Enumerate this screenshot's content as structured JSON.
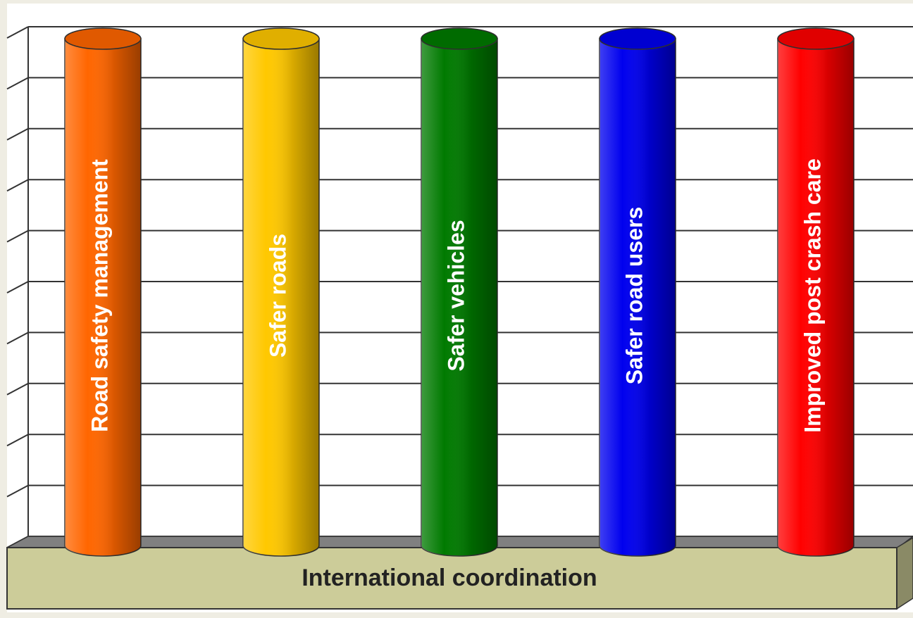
{
  "pillars": [
    {
      "label": "Road safety management",
      "color": "#ff6600"
    },
    {
      "label": "Safer roads",
      "color": "#ffc800"
    },
    {
      "label": "Safer vehicles",
      "color": "#007a00"
    },
    {
      "label": "Safer road users",
      "color": "#0000ee"
    },
    {
      "label": "Improved post crash care",
      "color": "#ff0000"
    }
  ],
  "base": {
    "label": "International coordination"
  }
}
